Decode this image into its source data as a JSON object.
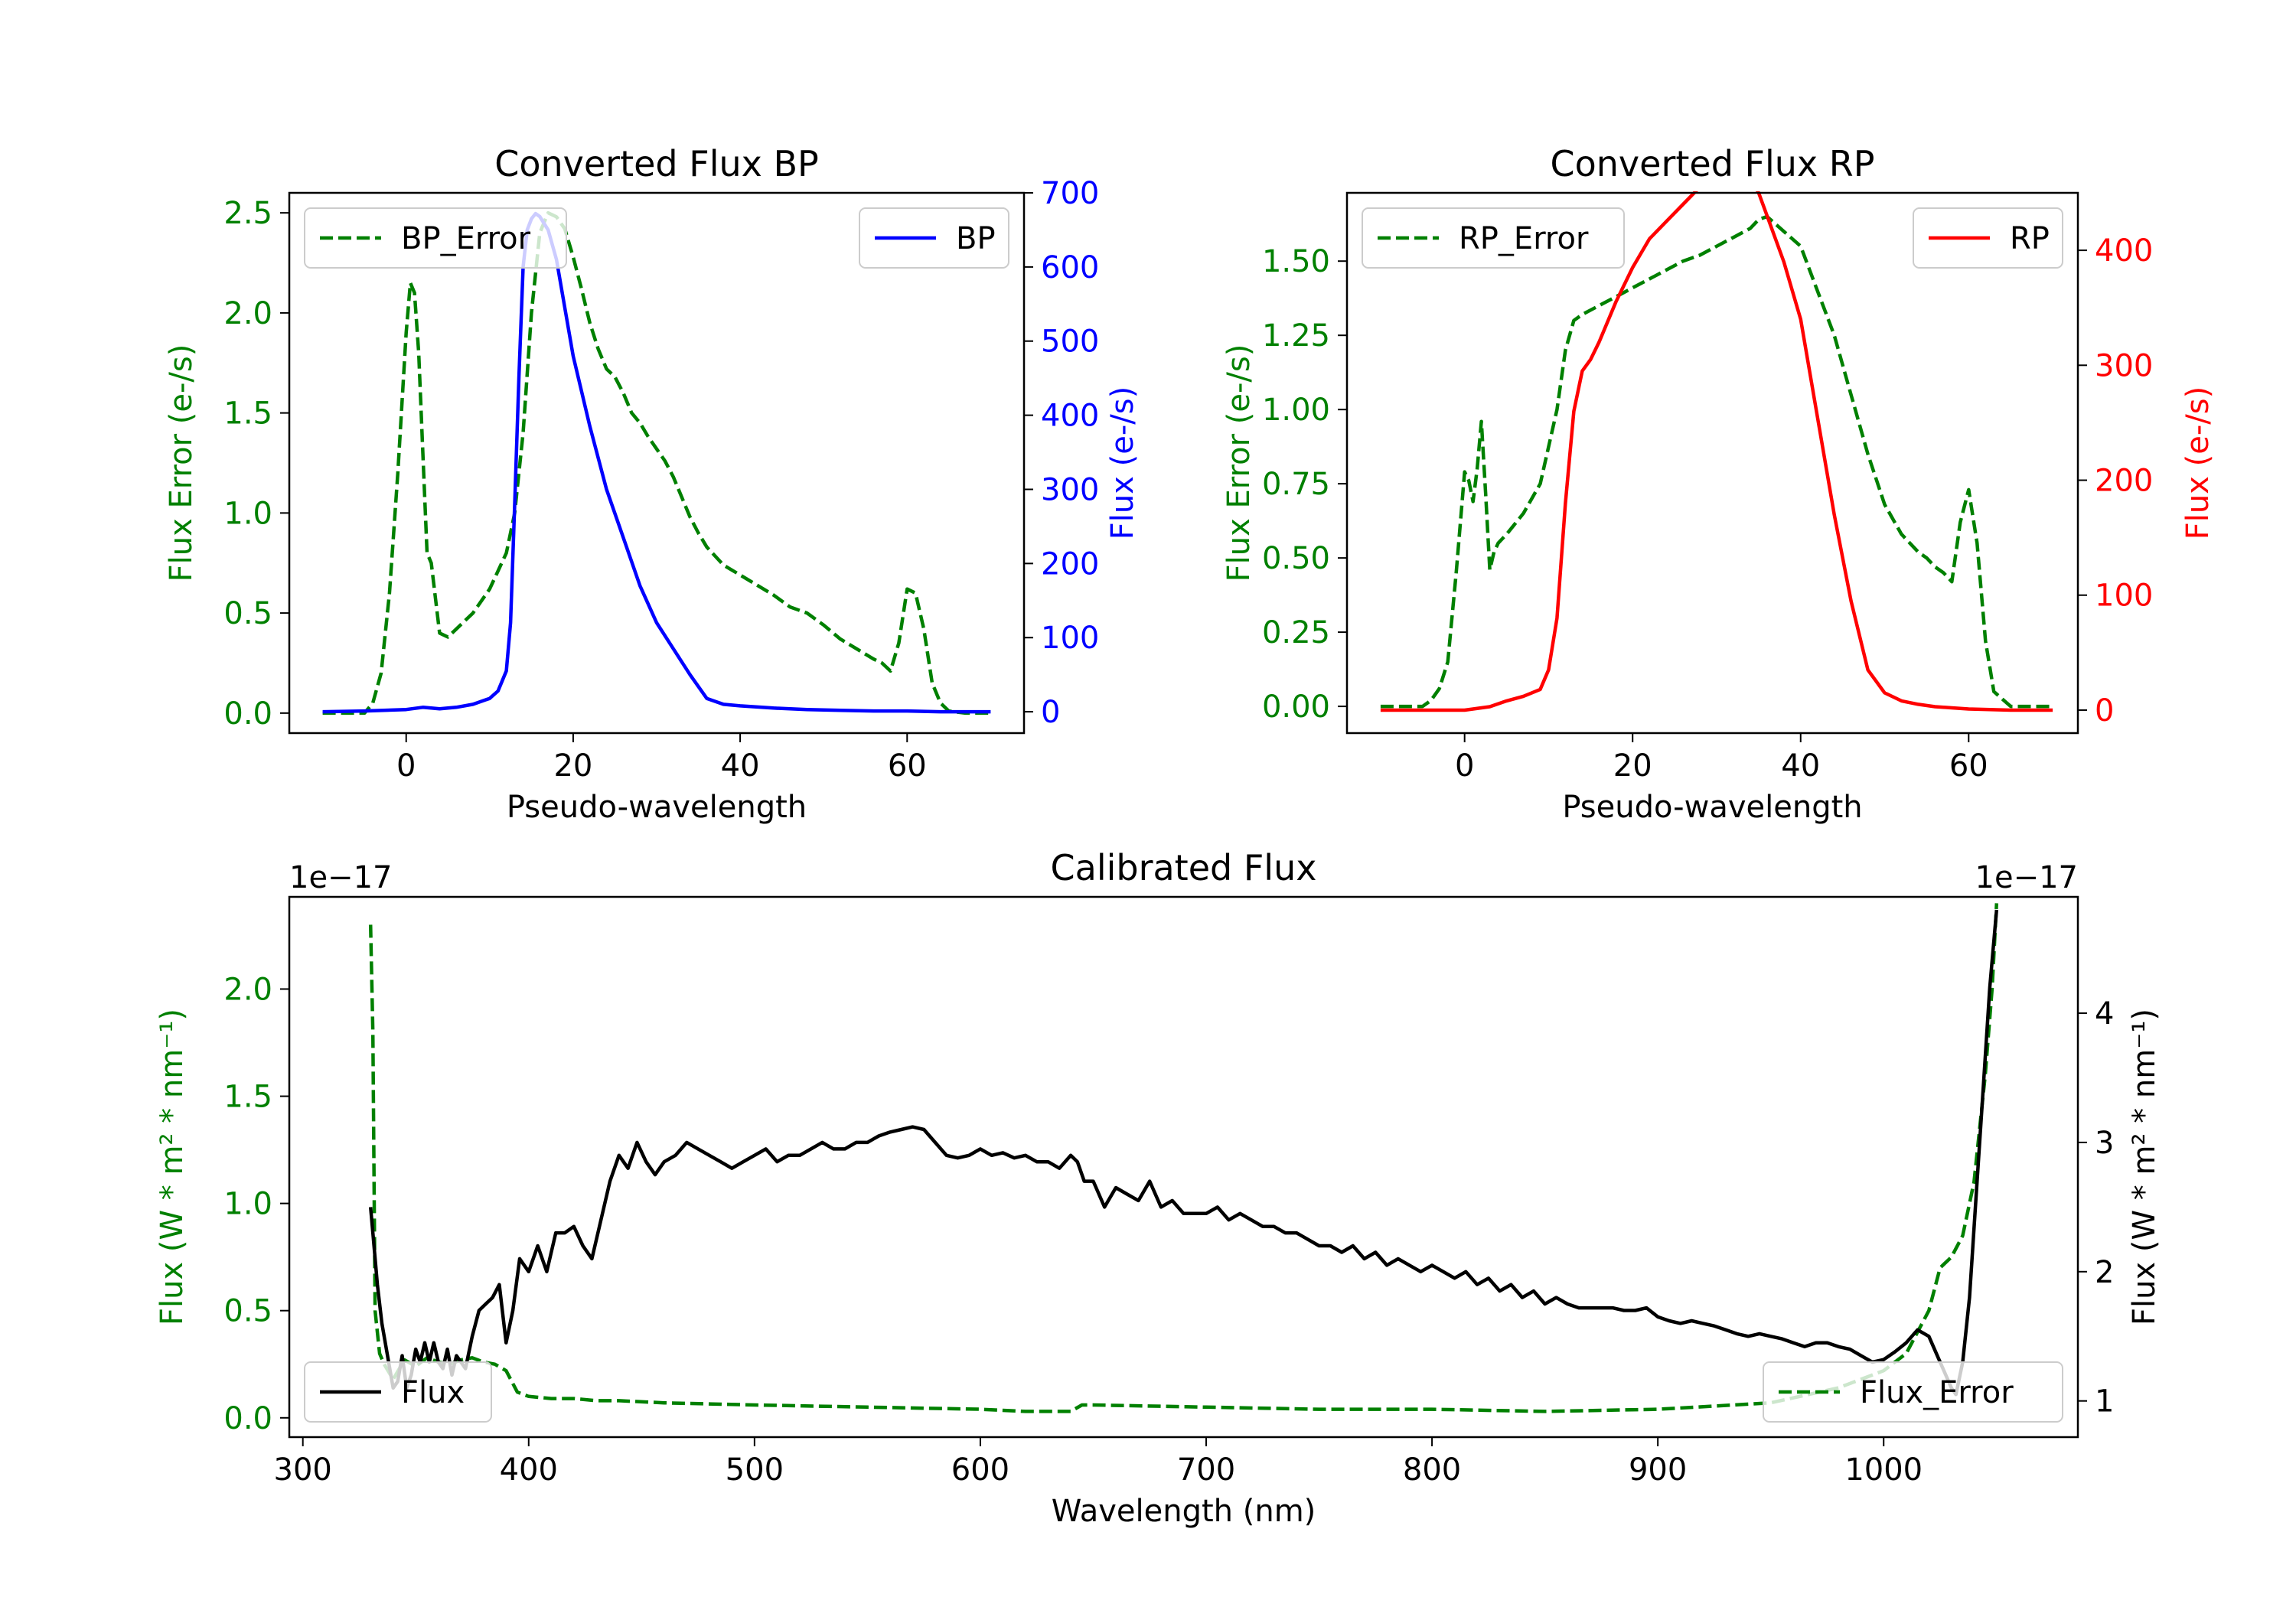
{
  "colors": {
    "green": "#008000",
    "blue": "#0000ff",
    "red": "#ff0000",
    "black": "#000000"
  },
  "chart_data": [
    {
      "id": "bp",
      "type": "line",
      "title": "Converted Flux BP",
      "xlabel": "Pseudo-wavelength",
      "ylabel_left": "Flux Error (e-/s)",
      "ylabel_right": "Flux (e-/s)",
      "xlim": [
        -14,
        74
      ],
      "ylim_left": [
        -0.1,
        2.6
      ],
      "ylim_right": [
        -28.8,
        700
      ],
      "xticks": [
        0,
        20,
        40,
        60
      ],
      "yticks_left": [
        0.0,
        0.5,
        1.0,
        1.5,
        2.0,
        2.5
      ],
      "yticks_right": [
        0,
        100,
        200,
        300,
        400,
        500,
        600,
        700
      ],
      "series": [
        {
          "name": "BP_Error",
          "axis": "left",
          "style": "dashed",
          "color": "green",
          "x": [
            -10,
            -5,
            -4,
            -3,
            -2,
            -1,
            0,
            0.5,
            1,
            1.5,
            2,
            2.5,
            3,
            4,
            5,
            6,
            8,
            10,
            12,
            13,
            14,
            15,
            16,
            17,
            18,
            19,
            20,
            21,
            22,
            23,
            24,
            25,
            26,
            27,
            28,
            29,
            30,
            31,
            32,
            33,
            34,
            35,
            36,
            38,
            40,
            42,
            44,
            46,
            48,
            50,
            52,
            54,
            56,
            57,
            58,
            59,
            60,
            61,
            62,
            63,
            64,
            65,
            67,
            70
          ],
          "y": [
            0,
            0,
            0.05,
            0.2,
            0.6,
            1.2,
            1.9,
            2.15,
            2.1,
            1.8,
            1.3,
            0.8,
            0.75,
            0.4,
            0.38,
            0.42,
            0.5,
            0.62,
            0.8,
            1.0,
            1.4,
            2.0,
            2.4,
            2.5,
            2.48,
            2.42,
            2.28,
            2.12,
            1.95,
            1.82,
            1.72,
            1.68,
            1.6,
            1.5,
            1.45,
            1.38,
            1.32,
            1.26,
            1.18,
            1.08,
            0.98,
            0.9,
            0.83,
            0.74,
            0.69,
            0.64,
            0.59,
            0.53,
            0.5,
            0.44,
            0.37,
            0.32,
            0.27,
            0.25,
            0.21,
            0.35,
            0.62,
            0.6,
            0.42,
            0.15,
            0.05,
            0.01,
            0,
            0
          ]
        },
        {
          "name": "BP",
          "axis": "right",
          "style": "solid",
          "color": "blue",
          "x": [
            -10,
            -5,
            0,
            2,
            4,
            6,
            8,
            10,
            11,
            12,
            12.5,
            13,
            13.5,
            14,
            14.5,
            15,
            15.5,
            16,
            17,
            18,
            19,
            20,
            22,
            24,
            26,
            28,
            30,
            32,
            34,
            36,
            38,
            40,
            44,
            48,
            52,
            56,
            60,
            64,
            70
          ],
          "y": [
            0,
            1,
            3,
            6,
            4,
            6,
            10,
            18,
            28,
            55,
            120,
            280,
            450,
            600,
            650,
            665,
            672,
            668,
            650,
            610,
            545,
            480,
            385,
            300,
            235,
            170,
            120,
            85,
            50,
            18,
            10,
            8,
            5,
            3,
            2,
            1,
            1,
            0,
            0
          ]
        }
      ],
      "legend": [
        {
          "label": "BP_Error",
          "loc": "upper-left"
        },
        {
          "label": "BP",
          "loc": "upper-right"
        }
      ]
    },
    {
      "id": "rp",
      "type": "line",
      "title": "Converted Flux RP",
      "xlabel": "Pseudo-wavelength",
      "ylabel_left": "Flux Error (e-/s)",
      "ylabel_right": "Flux (e-/s)",
      "xlim": [
        -14,
        73
      ],
      "ylim_left": [
        -0.09,
        1.73
      ],
      "ylim_right": [
        -20,
        450
      ],
      "xticks": [
        0,
        20,
        40,
        60
      ],
      "yticks_left": [
        0.0,
        0.25,
        0.5,
        0.75,
        1.0,
        1.25,
        1.5
      ],
      "yticks_right": [
        0,
        100,
        200,
        300,
        400
      ],
      "series": [
        {
          "name": "RP_Error",
          "axis": "left",
          "style": "dashed",
          "color": "green",
          "x": [
            -10,
            -5,
            -4,
            -3,
            -2,
            -1,
            0,
            0.5,
            1,
            1.5,
            2,
            2.5,
            3,
            3.5,
            4,
            5,
            7,
            9,
            11,
            12,
            13,
            14,
            16,
            18,
            20,
            22,
            24,
            26,
            28,
            30,
            32,
            34,
            35,
            36,
            38,
            40,
            42,
            44,
            46,
            48,
            50,
            52,
            54,
            55,
            56,
            57,
            58,
            59,
            60,
            61,
            62,
            63,
            65,
            70
          ],
          "y": [
            0,
            0,
            0.02,
            0.06,
            0.15,
            0.45,
            0.79,
            0.76,
            0.69,
            0.8,
            0.96,
            0.72,
            0.46,
            0.52,
            0.55,
            0.58,
            0.65,
            0.75,
            1.0,
            1.2,
            1.3,
            1.32,
            1.35,
            1.38,
            1.41,
            1.44,
            1.47,
            1.5,
            1.52,
            1.55,
            1.58,
            1.61,
            1.64,
            1.65,
            1.6,
            1.55,
            1.4,
            1.25,
            1.05,
            0.85,
            0.68,
            0.58,
            0.52,
            0.5,
            0.47,
            0.45,
            0.42,
            0.62,
            0.73,
            0.55,
            0.22,
            0.05,
            0,
            0
          ]
        },
        {
          "name": "RP",
          "axis": "right",
          "style": "solid",
          "color": "red",
          "x": [
            -10,
            -5,
            0,
            3,
            5,
            7,
            9,
            10,
            11,
            12,
            13,
            14,
            15,
            16,
            18,
            20,
            22,
            24,
            26,
            28,
            30,
            32,
            33,
            34,
            35,
            36,
            38,
            40,
            42,
            44,
            46,
            48,
            50,
            52,
            54,
            56,
            58,
            60,
            65,
            70
          ],
          "y": [
            0,
            0,
            0,
            3,
            8,
            12,
            18,
            35,
            80,
            180,
            260,
            295,
            305,
            320,
            355,
            385,
            410,
            425,
            440,
            455,
            465,
            465,
            466,
            462,
            450,
            430,
            390,
            340,
            255,
            170,
            95,
            35,
            15,
            8,
            5,
            3,
            2,
            1,
            0,
            0
          ]
        }
      ],
      "legend": [
        {
          "label": "RP_Error",
          "loc": "upper-left"
        },
        {
          "label": "RP",
          "loc": "upper-right"
        }
      ]
    },
    {
      "id": "cal",
      "type": "line",
      "title": "Calibrated Flux",
      "xlabel": "Wavelength (nm)",
      "ylabel_left": "Flux (W * m² * nm⁻¹)",
      "ylabel_right": "Flux (W * m² * nm⁻¹)",
      "scale_left": "1e−17",
      "scale_right": "1e−17",
      "xlim": [
        294,
        1086
      ],
      "ylim_left": [
        -0.09,
        2.43
      ],
      "ylim_right": [
        0.72,
        4.9
      ],
      "xticks": [
        300,
        400,
        500,
        600,
        700,
        800,
        900,
        1000
      ],
      "yticks_left": [
        0.0,
        0.5,
        1.0,
        1.5,
        2.0
      ],
      "yticks_right": [
        1,
        2,
        3,
        4
      ],
      "series": [
        {
          "name": "Flux_Error",
          "axis": "left",
          "style": "dashed",
          "color": "green",
          "x": [
            330,
            331,
            332,
            334,
            336,
            340,
            345,
            350,
            355,
            360,
            365,
            370,
            375,
            380,
            385,
            390,
            395,
            400,
            410,
            420,
            430,
            440,
            460,
            500,
            550,
            600,
            620,
            640,
            645,
            650,
            700,
            750,
            800,
            850,
            900,
            950,
            980,
            1000,
            1010,
            1020,
            1025,
            1030,
            1035,
            1040,
            1045,
            1048,
            1050
          ],
          "y": [
            2.3,
            1.8,
            0.5,
            0.3,
            0.25,
            0.18,
            0.27,
            0.24,
            0.28,
            0.26,
            0.25,
            0.27,
            0.28,
            0.26,
            0.25,
            0.22,
            0.12,
            0.1,
            0.09,
            0.09,
            0.08,
            0.08,
            0.07,
            0.06,
            0.05,
            0.04,
            0.03,
            0.03,
            0.06,
            0.06,
            0.05,
            0.04,
            0.04,
            0.03,
            0.04,
            0.07,
            0.14,
            0.22,
            0.3,
            0.5,
            0.7,
            0.75,
            0.85,
            1.1,
            1.6,
            2.0,
            2.4
          ]
        },
        {
          "name": "Flux",
          "axis": "right",
          "style": "solid",
          "color": "black",
          "x": [
            330,
            331,
            333,
            335,
            338,
            340,
            342,
            344,
            346,
            348,
            350,
            352,
            354,
            356,
            358,
            360,
            362,
            364,
            366,
            368,
            370,
            372,
            375,
            378,
            381,
            384,
            387,
            390,
            393,
            396,
            400,
            404,
            408,
            412,
            416,
            420,
            424,
            428,
            432,
            436,
            440,
            444,
            448,
            452,
            456,
            460,
            465,
            470,
            475,
            480,
            485,
            490,
            495,
            500,
            505,
            510,
            515,
            520,
            525,
            530,
            535,
            540,
            545,
            550,
            555,
            560,
            565,
            570,
            575,
            580,
            585,
            590,
            595,
            600,
            605,
            610,
            615,
            620,
            625,
            630,
            635,
            640,
            643,
            646,
            650,
            655,
            660,
            665,
            670,
            675,
            680,
            685,
            690,
            695,
            700,
            705,
            710,
            715,
            720,
            725,
            730,
            735,
            740,
            745,
            750,
            755,
            760,
            765,
            770,
            775,
            780,
            785,
            790,
            795,
            800,
            805,
            810,
            815,
            820,
            825,
            830,
            835,
            840,
            845,
            850,
            855,
            860,
            865,
            870,
            875,
            880,
            885,
            890,
            895,
            900,
            905,
            910,
            915,
            920,
            925,
            930,
            935,
            940,
            945,
            950,
            955,
            960,
            965,
            970,
            975,
            980,
            985,
            990,
            995,
            1000,
            1005,
            1010,
            1015,
            1020,
            1025,
            1030,
            1032,
            1035,
            1038,
            1041,
            1044,
            1047,
            1050
          ],
          "y": [
            2.5,
            2.3,
            1.9,
            1.6,
            1.3,
            1.1,
            1.15,
            1.35,
            1.1,
            1.2,
            1.4,
            1.3,
            1.45,
            1.3,
            1.45,
            1.3,
            1.25,
            1.4,
            1.2,
            1.35,
            1.3,
            1.25,
            1.5,
            1.7,
            1.75,
            1.8,
            1.9,
            1.45,
            1.7,
            2.1,
            2.0,
            2.2,
            2.0,
            2.3,
            2.3,
            2.35,
            2.2,
            2.1,
            2.4,
            2.7,
            2.9,
            2.8,
            3.0,
            2.85,
            2.75,
            2.85,
            2.9,
            3.0,
            2.95,
            2.9,
            2.85,
            2.8,
            2.85,
            2.9,
            2.95,
            2.85,
            2.9,
            2.9,
            2.95,
            3.0,
            2.95,
            2.95,
            3.0,
            3.0,
            3.05,
            3.08,
            3.1,
            3.12,
            3.1,
            3.0,
            2.9,
            2.88,
            2.9,
            2.95,
            2.9,
            2.92,
            2.88,
            2.9,
            2.85,
            2.85,
            2.8,
            2.9,
            2.85,
            2.7,
            2.7,
            2.5,
            2.65,
            2.6,
            2.55,
            2.7,
            2.5,
            2.55,
            2.45,
            2.45,
            2.45,
            2.5,
            2.4,
            2.45,
            2.4,
            2.35,
            2.35,
            2.3,
            2.3,
            2.25,
            2.2,
            2.2,
            2.15,
            2.2,
            2.1,
            2.15,
            2.05,
            2.1,
            2.05,
            2.0,
            2.05,
            2.0,
            1.95,
            2.0,
            1.9,
            1.95,
            1.85,
            1.9,
            1.8,
            1.85,
            1.75,
            1.8,
            1.75,
            1.72,
            1.72,
            1.72,
            1.72,
            1.7,
            1.7,
            1.72,
            1.65,
            1.62,
            1.6,
            1.62,
            1.6,
            1.58,
            1.55,
            1.52,
            1.5,
            1.52,
            1.5,
            1.48,
            1.45,
            1.42,
            1.45,
            1.45,
            1.42,
            1.4,
            1.35,
            1.3,
            1.32,
            1.38,
            1.45,
            1.55,
            1.5,
            1.3,
            1.1,
            1.05,
            1.3,
            1.8,
            2.6,
            3.4,
            4.2,
            4.8
          ]
        }
      ],
      "legend": [
        {
          "label": "Flux",
          "loc": "lower-left"
        },
        {
          "label": "Flux_Error",
          "loc": "lower-right"
        }
      ]
    }
  ]
}
